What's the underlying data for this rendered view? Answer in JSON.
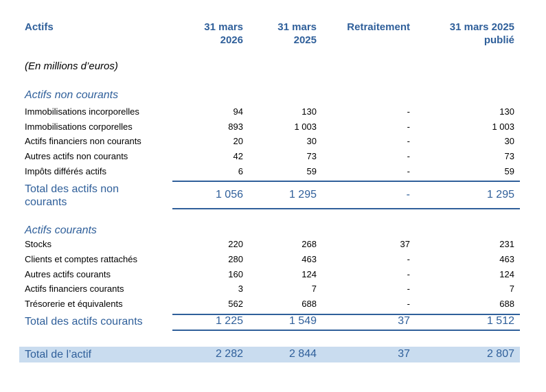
{
  "header": {
    "label": "Actifs",
    "col1": [
      "31 mars",
      "2026"
    ],
    "col2": [
      "31 mars",
      "2025"
    ],
    "col3": [
      "Retraitement",
      ""
    ],
    "col4": [
      "31 mars 2025",
      "publié"
    ]
  },
  "unit_note": "(En millions d’euros)",
  "non_current": {
    "title": "Actifs non courants",
    "rows": [
      {
        "label": "Immobilisations incorporelles",
        "v": [
          "94",
          "130",
          "-",
          "130"
        ]
      },
      {
        "label": "Immobilisations corporelles",
        "v": [
          "893",
          "1 003",
          "-",
          "1 003"
        ]
      },
      {
        "label": "Actifs financiers non courants",
        "v": [
          "20",
          "30",
          "-",
          "30"
        ]
      },
      {
        "label": "Autres actifs non courants",
        "v": [
          "42",
          "73",
          "-",
          "73"
        ]
      },
      {
        "label": "Impôts différés actifs",
        "v": [
          "6",
          "59",
          "-",
          "59"
        ]
      }
    ],
    "total": {
      "label": [
        "Total des actifs non",
        "courants"
      ],
      "v": [
        "1 056",
        "1 295",
        "-",
        "1 295"
      ]
    }
  },
  "current": {
    "title": "Actifs courants",
    "rows": [
      {
        "label": "Stocks",
        "v": [
          "220",
          "268",
          "37",
          "231"
        ]
      },
      {
        "label": "Clients et comptes rattachés",
        "v": [
          "280",
          "463",
          "-",
          "463"
        ]
      },
      {
        "label": "Autres actifs courants",
        "v": [
          "160",
          "124",
          "-",
          "124"
        ]
      },
      {
        "label": "Actifs financiers courants",
        "v": [
          "3",
          "7",
          "-",
          "7"
        ]
      },
      {
        "label": "Trésorerie et équivalents",
        "v": [
          "562",
          "688",
          "-",
          "688"
        ]
      }
    ],
    "total": {
      "label": "Total des actifs courants",
      "v": [
        "1 225",
        "1 549",
        "37",
        "1 512"
      ]
    }
  },
  "grand_total": {
    "label": "Total de l’actif",
    "v": [
      "2 282",
      "2 844",
      "37",
      "2 807"
    ]
  },
  "colors": {
    "accent": "#2f5f9a",
    "band": "#c9dcef"
  }
}
